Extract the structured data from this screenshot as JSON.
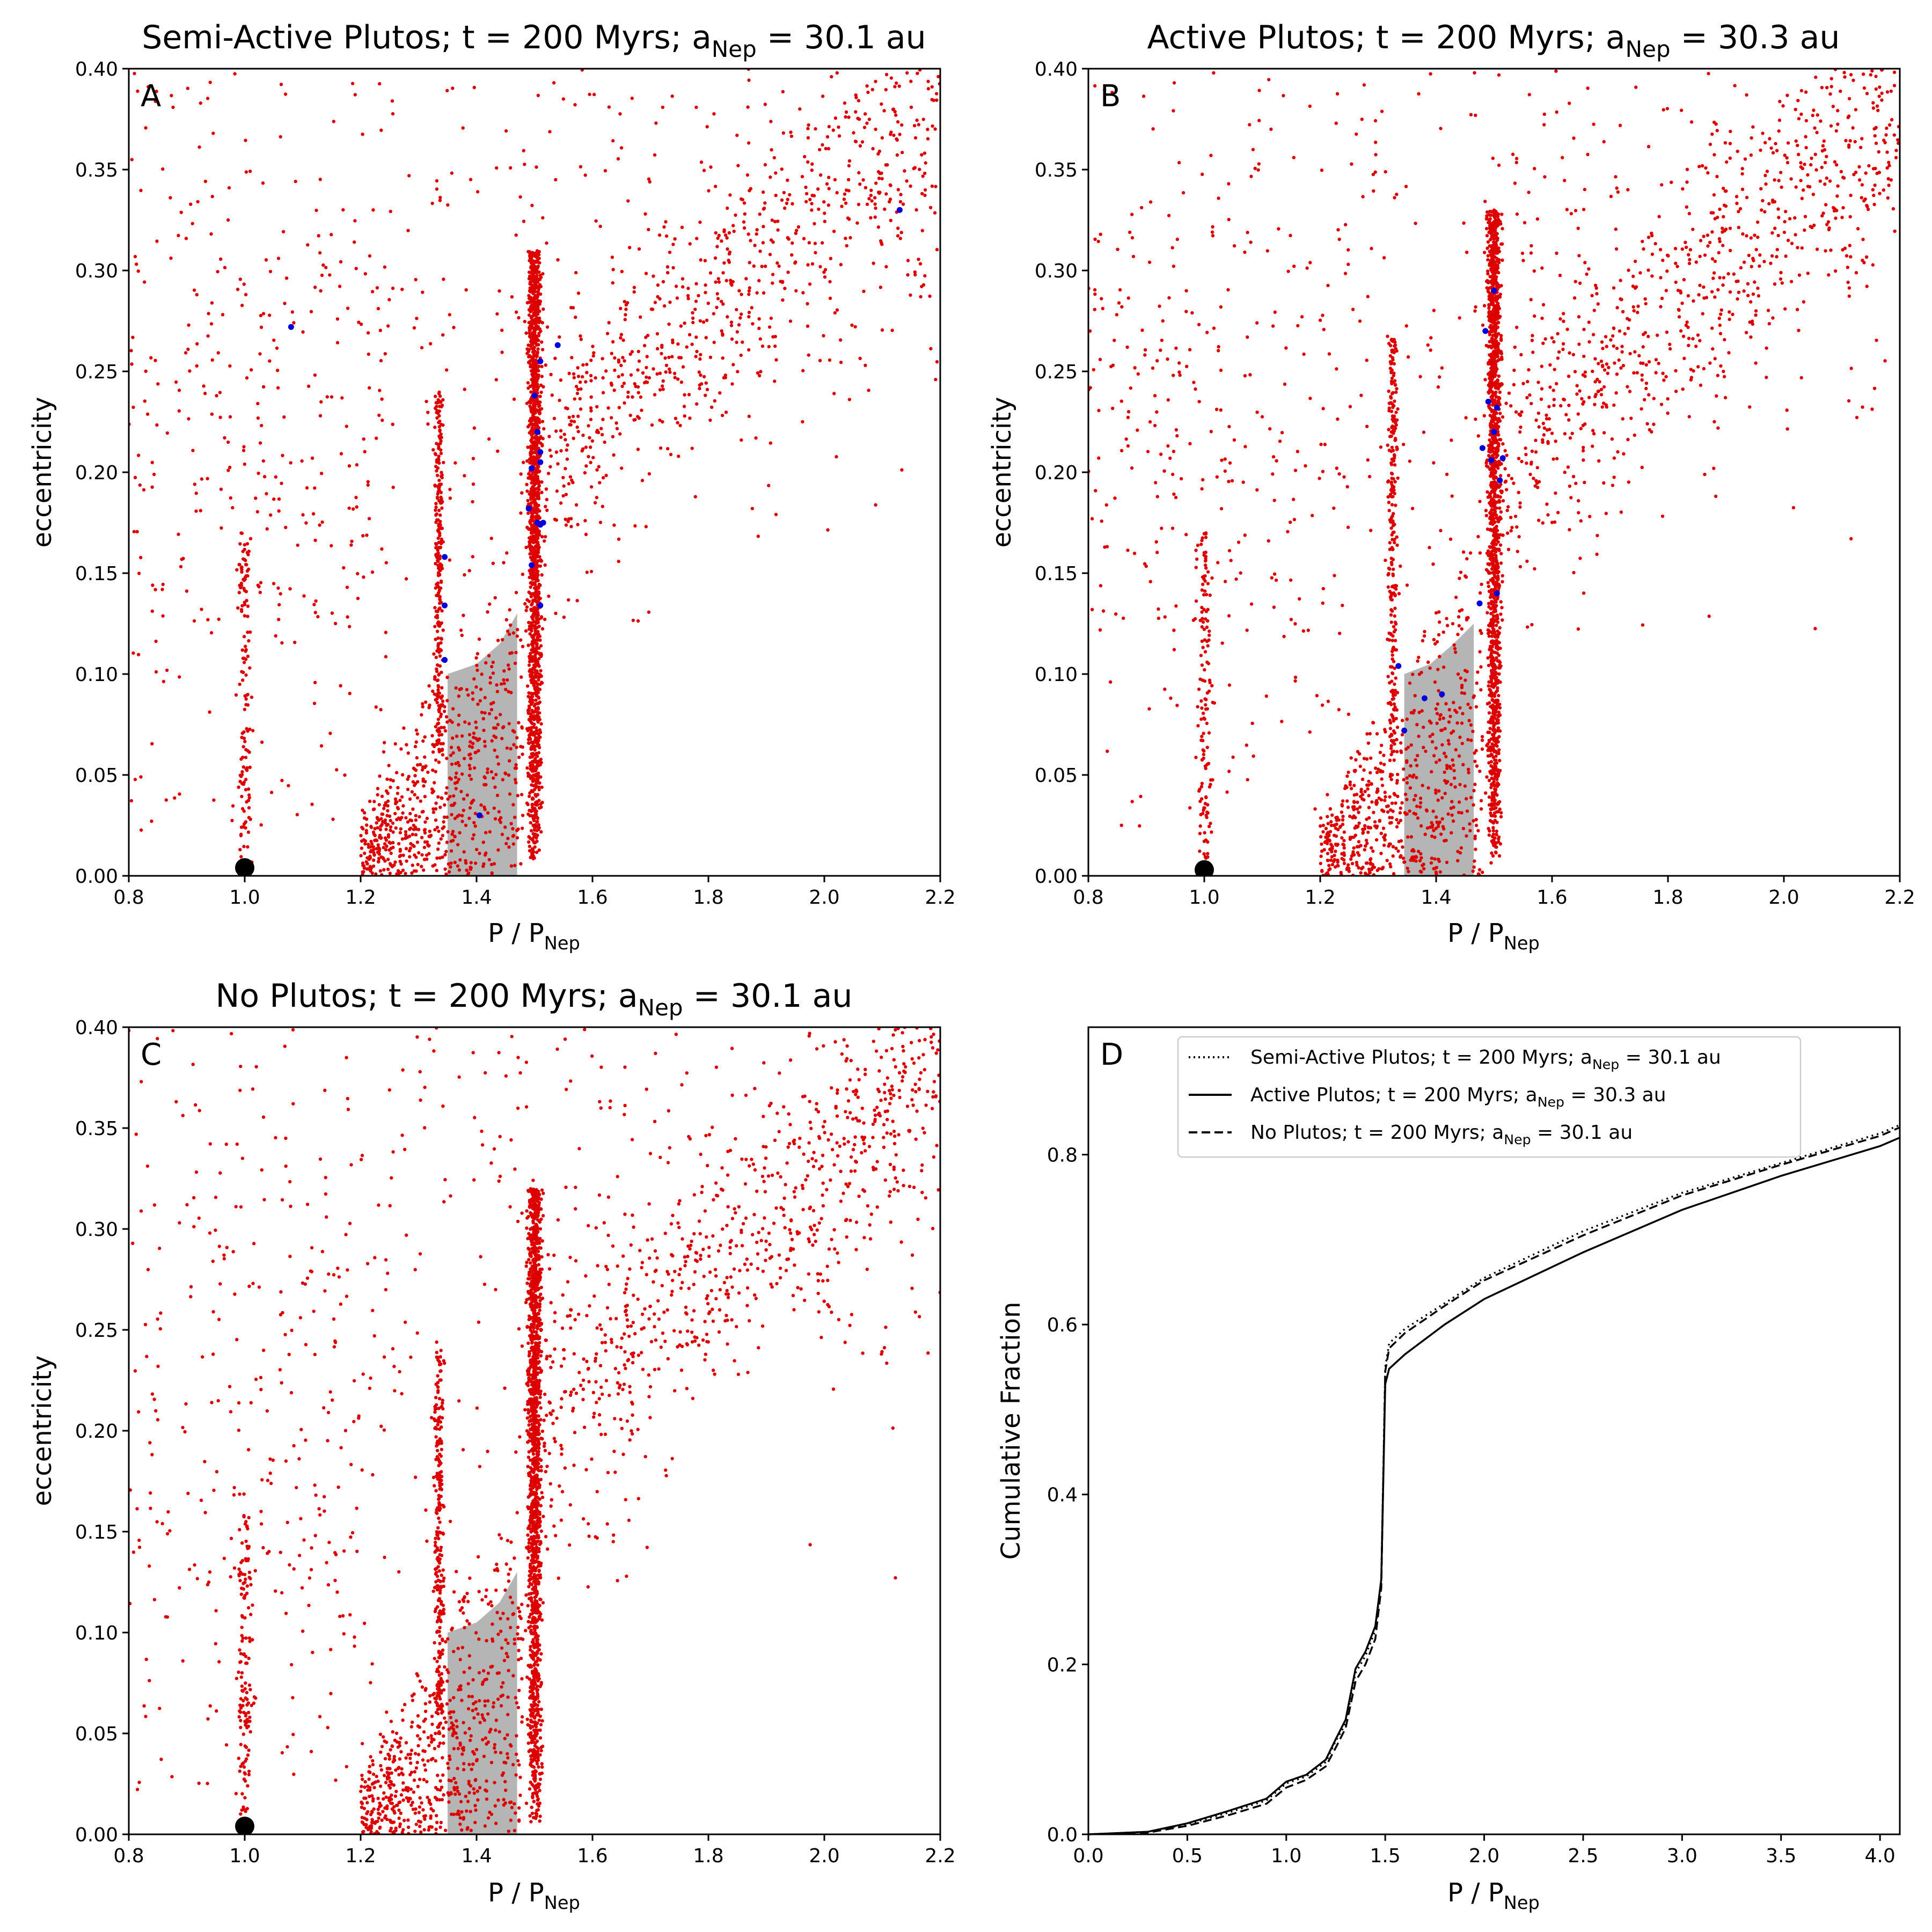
{
  "colors": {
    "red": "#dd0000",
    "blue": "#0000dd",
    "gray": "#b5b5b5",
    "black": "#000000"
  },
  "chart_data": [
    {
      "type": "scatter",
      "panel": "A",
      "title_main": "Semi-Active Plutos; t = 200 Myrs; a",
      "title_sub": "Nep",
      "title_tail": " = 30.1 au",
      "xlabel_main": "P / P",
      "xlabel_sub": "Nep",
      "ylabel": "eccentricity",
      "xlim": [
        0.8,
        2.2
      ],
      "ylim": [
        0.0,
        0.4
      ],
      "xticks": [
        "0.8",
        "1.0",
        "1.2",
        "1.4",
        "1.6",
        "1.8",
        "2.0",
        "2.2"
      ],
      "yticks": [
        "0.00",
        "0.05",
        "0.10",
        "0.15",
        "0.20",
        "0.25",
        "0.30",
        "0.35",
        "0.40"
      ],
      "shaded_region": [
        [
          1.35,
          0.0
        ],
        [
          1.47,
          0.0
        ],
        [
          1.47,
          0.13
        ],
        [
          1.44,
          0.115
        ],
        [
          1.4,
          0.105
        ],
        [
          1.35,
          0.1
        ]
      ],
      "neptune_marker": [
        1.0,
        0.004
      ],
      "blue_points": [
        [
          1.08,
          0.272
        ],
        [
          1.345,
          0.158
        ],
        [
          1.345,
          0.134
        ],
        [
          1.345,
          0.107
        ],
        [
          1.405,
          0.03
        ],
        [
          1.49,
          0.182
        ],
        [
          1.495,
          0.202
        ],
        [
          1.495,
          0.154
        ],
        [
          1.5,
          0.238
        ],
        [
          1.505,
          0.22
        ],
        [
          1.505,
          0.175
        ],
        [
          1.51,
          0.21
        ],
        [
          1.51,
          0.205
        ],
        [
          1.51,
          0.134
        ],
        [
          1.51,
          0.174
        ],
        [
          1.515,
          0.175
        ],
        [
          1.51,
          0.255
        ],
        [
          1.54,
          0.263
        ],
        [
          2.13,
          0.33
        ]
      ],
      "red_structures": {
        "resonance_3_2": {
          "center": 1.5,
          "ecc_max": 0.31
        },
        "resonance_4_3": {
          "center": 1.335,
          "ecc_max": 0.24
        },
        "co_orbital": {
          "center": 1.0,
          "ecc_max": 0.17
        }
      }
    },
    {
      "type": "scatter",
      "panel": "B",
      "title_main": "Active Plutos; t = 200 Myrs; a",
      "title_sub": "Nep",
      "title_tail": " = 30.3 au",
      "xlabel_main": "P / P",
      "xlabel_sub": "Nep",
      "ylabel": "eccentricity",
      "xlim": [
        0.8,
        2.2
      ],
      "ylim": [
        0.0,
        0.4
      ],
      "xticks": [
        "0.8",
        "1.0",
        "1.2",
        "1.4",
        "1.6",
        "1.8",
        "2.0",
        "2.2"
      ],
      "yticks": [
        "0.00",
        "0.05",
        "0.10",
        "0.15",
        "0.20",
        "0.25",
        "0.30",
        "0.35",
        "0.40"
      ],
      "shaded_region": [
        [
          1.345,
          0.0
        ],
        [
          1.465,
          0.0
        ],
        [
          1.465,
          0.125
        ],
        [
          1.43,
          0.115
        ],
        [
          1.39,
          0.105
        ],
        [
          1.345,
          0.1
        ]
      ],
      "neptune_marker": [
        1.0,
        0.003
      ],
      "blue_points": [
        [
          1.335,
          0.104
        ],
        [
          1.345,
          0.072
        ],
        [
          1.38,
          0.088
        ],
        [
          1.41,
          0.09
        ],
        [
          1.475,
          0.135
        ],
        [
          1.48,
          0.212
        ],
        [
          1.485,
          0.27
        ],
        [
          1.49,
          0.235
        ],
        [
          1.495,
          0.206
        ],
        [
          1.5,
          0.22
        ],
        [
          1.5,
          0.29
        ],
        [
          1.505,
          0.232
        ],
        [
          1.505,
          0.14
        ],
        [
          1.51,
          0.196
        ],
        [
          1.515,
          0.207
        ]
      ],
      "red_structures": {
        "resonance_3_2": {
          "center": 1.5,
          "ecc_max": 0.33
        },
        "resonance_4_3": {
          "center": 1.325,
          "ecc_max": 0.27
        },
        "co_orbital": {
          "center": 1.0,
          "ecc_max": 0.17
        }
      }
    },
    {
      "type": "scatter",
      "panel": "C",
      "title_main": "No Plutos; t = 200 Myrs; a",
      "title_sub": "Nep",
      "title_tail": " = 30.1 au",
      "xlabel_main": "P / P",
      "xlabel_sub": "Nep",
      "ylabel": "eccentricity",
      "xlim": [
        0.8,
        2.2
      ],
      "ylim": [
        0.0,
        0.4
      ],
      "xticks": [
        "0.8",
        "1.0",
        "1.2",
        "1.4",
        "1.6",
        "1.8",
        "2.0",
        "2.2"
      ],
      "yticks": [
        "0.00",
        "0.05",
        "0.10",
        "0.15",
        "0.20",
        "0.25",
        "0.30",
        "0.35",
        "0.40"
      ],
      "shaded_region": [
        [
          1.35,
          0.0
        ],
        [
          1.47,
          0.0
        ],
        [
          1.47,
          0.13
        ],
        [
          1.44,
          0.115
        ],
        [
          1.4,
          0.105
        ],
        [
          1.35,
          0.1
        ]
      ],
      "neptune_marker": [
        1.0,
        0.004
      ],
      "blue_points": [],
      "red_structures": {
        "resonance_3_2": {
          "center": 1.5,
          "ecc_max": 0.32
        },
        "resonance_4_3": {
          "center": 1.335,
          "ecc_max": 0.24
        },
        "co_orbital": {
          "center": 1.0,
          "ecc_max": 0.17
        }
      }
    },
    {
      "type": "line",
      "panel": "D",
      "xlabel_main": "P / P",
      "xlabel_sub": "Nep",
      "ylabel": "Cumulative Fraction",
      "xlim": [
        0.0,
        4.1
      ],
      "ylim": [
        0.0,
        0.95
      ],
      "xticks": [
        "0.0",
        "0.5",
        "1.0",
        "1.5",
        "2.0",
        "2.5",
        "3.0",
        "3.5",
        "4.0"
      ],
      "yticks": [
        "0.0",
        "0.2",
        "0.4",
        "0.6",
        "0.8"
      ],
      "legend_position": "top-right",
      "series": [
        {
          "name_main": "Semi-Active Plutos; t = 200 Myrs; a",
          "name_sub": "Nep",
          "name_tail": " = 30.1 au",
          "style": "dotted",
          "x": [
            0.0,
            0.3,
            0.5,
            0.7,
            0.9,
            1.0,
            1.1,
            1.2,
            1.25,
            1.3,
            1.35,
            1.4,
            1.45,
            1.48,
            1.5,
            1.52,
            1.6,
            1.8,
            2.0,
            2.5,
            3.0,
            3.5,
            4.0,
            4.1
          ],
          "y": [
            0.0,
            0.003,
            0.012,
            0.025,
            0.04,
            0.06,
            0.068,
            0.085,
            0.11,
            0.13,
            0.19,
            0.21,
            0.24,
            0.3,
            0.55,
            0.578,
            0.595,
            0.625,
            0.655,
            0.71,
            0.755,
            0.79,
            0.825,
            0.835
          ]
        },
        {
          "name_main": "Active Plutos; t = 200 Myrs; a",
          "name_sub": "Nep",
          "name_tail": " = 30.3 au",
          "style": "solid",
          "x": [
            0.0,
            0.3,
            0.5,
            0.7,
            0.9,
            1.0,
            1.1,
            1.2,
            1.25,
            1.3,
            1.35,
            1.4,
            1.45,
            1.48,
            1.5,
            1.52,
            1.6,
            1.8,
            2.0,
            2.5,
            3.0,
            3.5,
            4.0,
            4.1
          ],
          "y": [
            0.0,
            0.003,
            0.013,
            0.027,
            0.042,
            0.062,
            0.07,
            0.088,
            0.112,
            0.135,
            0.195,
            0.215,
            0.245,
            0.3,
            0.53,
            0.548,
            0.565,
            0.6,
            0.63,
            0.685,
            0.735,
            0.775,
            0.81,
            0.82
          ]
        },
        {
          "name_main": "No Plutos; t = 200 Myrs; a",
          "name_sub": "Nep",
          "name_tail": " = 30.1 au",
          "style": "dashed",
          "x": [
            0.0,
            0.3,
            0.5,
            0.7,
            0.9,
            1.0,
            1.1,
            1.2,
            1.25,
            1.3,
            1.35,
            1.4,
            1.45,
            1.48,
            1.5,
            1.52,
            1.6,
            1.8,
            2.0,
            2.5,
            3.0,
            3.5,
            4.0,
            4.1
          ],
          "y": [
            0.0,
            0.002,
            0.01,
            0.022,
            0.036,
            0.055,
            0.064,
            0.08,
            0.102,
            0.125,
            0.18,
            0.2,
            0.23,
            0.29,
            0.545,
            0.572,
            0.59,
            0.622,
            0.652,
            0.705,
            0.752,
            0.788,
            0.822,
            0.832
          ]
        }
      ]
    }
  ]
}
